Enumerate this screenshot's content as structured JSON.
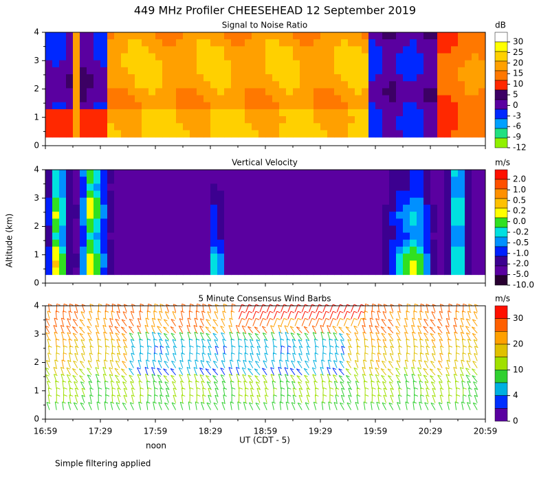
{
  "title": "449 MHz Profiler CHEESEHEAD 12 September 2019",
  "y_axis_label": "Altitude (km)",
  "x_axis_label": "UT  (CDT - 5)",
  "noon_label": "noon",
  "footnote": "Simple filtering applied",
  "xticks": [
    "16:59",
    "17:29",
    "17:59",
    "18:29",
    "18:59",
    "19:29",
    "19:59",
    "20:29",
    "20:59"
  ],
  "ylim": [
    0,
    4
  ],
  "yticks": [
    0,
    1,
    2,
    3,
    4
  ],
  "panels": [
    {
      "title": "Signal to Noise Ratio",
      "unit": "dB",
      "colorbar_ticks": [
        30,
        25,
        20,
        15,
        10,
        5,
        0,
        -3,
        -6,
        -9,
        -12
      ],
      "colors": [
        "#ffffff",
        "#ffff00",
        "#ffd000",
        "#ffa000",
        "#ff7800",
        "#ff2800",
        "#3c0064",
        "#5a00a0",
        "#0028ff",
        "#00a0ff",
        "#20e080",
        "#90f000"
      ]
    },
    {
      "title": "Vertical Velocity",
      "unit": "m/s",
      "colorbar_ticks": [
        {
          "value": 2,
          "label": "2.0"
        },
        {
          "value": 1,
          "label": "1.0"
        },
        {
          "value": 0.5,
          "label": "0.5"
        },
        {
          "value": 0.2,
          "label": "0.2"
        },
        {
          "value": 0,
          "label": "0.0"
        },
        {
          "value": -0.2,
          "label": "-0.2"
        },
        {
          "value": -0.5,
          "label": "-0.5"
        },
        {
          "value": -1,
          "label": "-1.0"
        },
        {
          "value": -2,
          "label": "-2.0"
        },
        {
          "value": -5,
          "label": "-5.0"
        },
        {
          "value": -10,
          "label": "-10.0"
        }
      ],
      "colors": [
        "#ff1000",
        "#ff5000",
        "#ff9000",
        "#ffc000",
        "#ffff00",
        "#30e020",
        "#00e0e0",
        "#0090ff",
        "#0020ff",
        "#3c0090",
        "#5a00a0",
        "#280030"
      ]
    },
    {
      "title": "5 Minute Consensus Wind Barbs",
      "unit": "m/s",
      "colorbar_ticks": [
        30,
        20,
        10,
        4,
        0
      ],
      "colors": [
        "#ff1000",
        "#ff6000",
        "#ffa000",
        "#e0c000",
        "#a0e000",
        "#30d030",
        "#00b0e0",
        "#0030ff",
        "#5a00a0"
      ]
    }
  ]
}
